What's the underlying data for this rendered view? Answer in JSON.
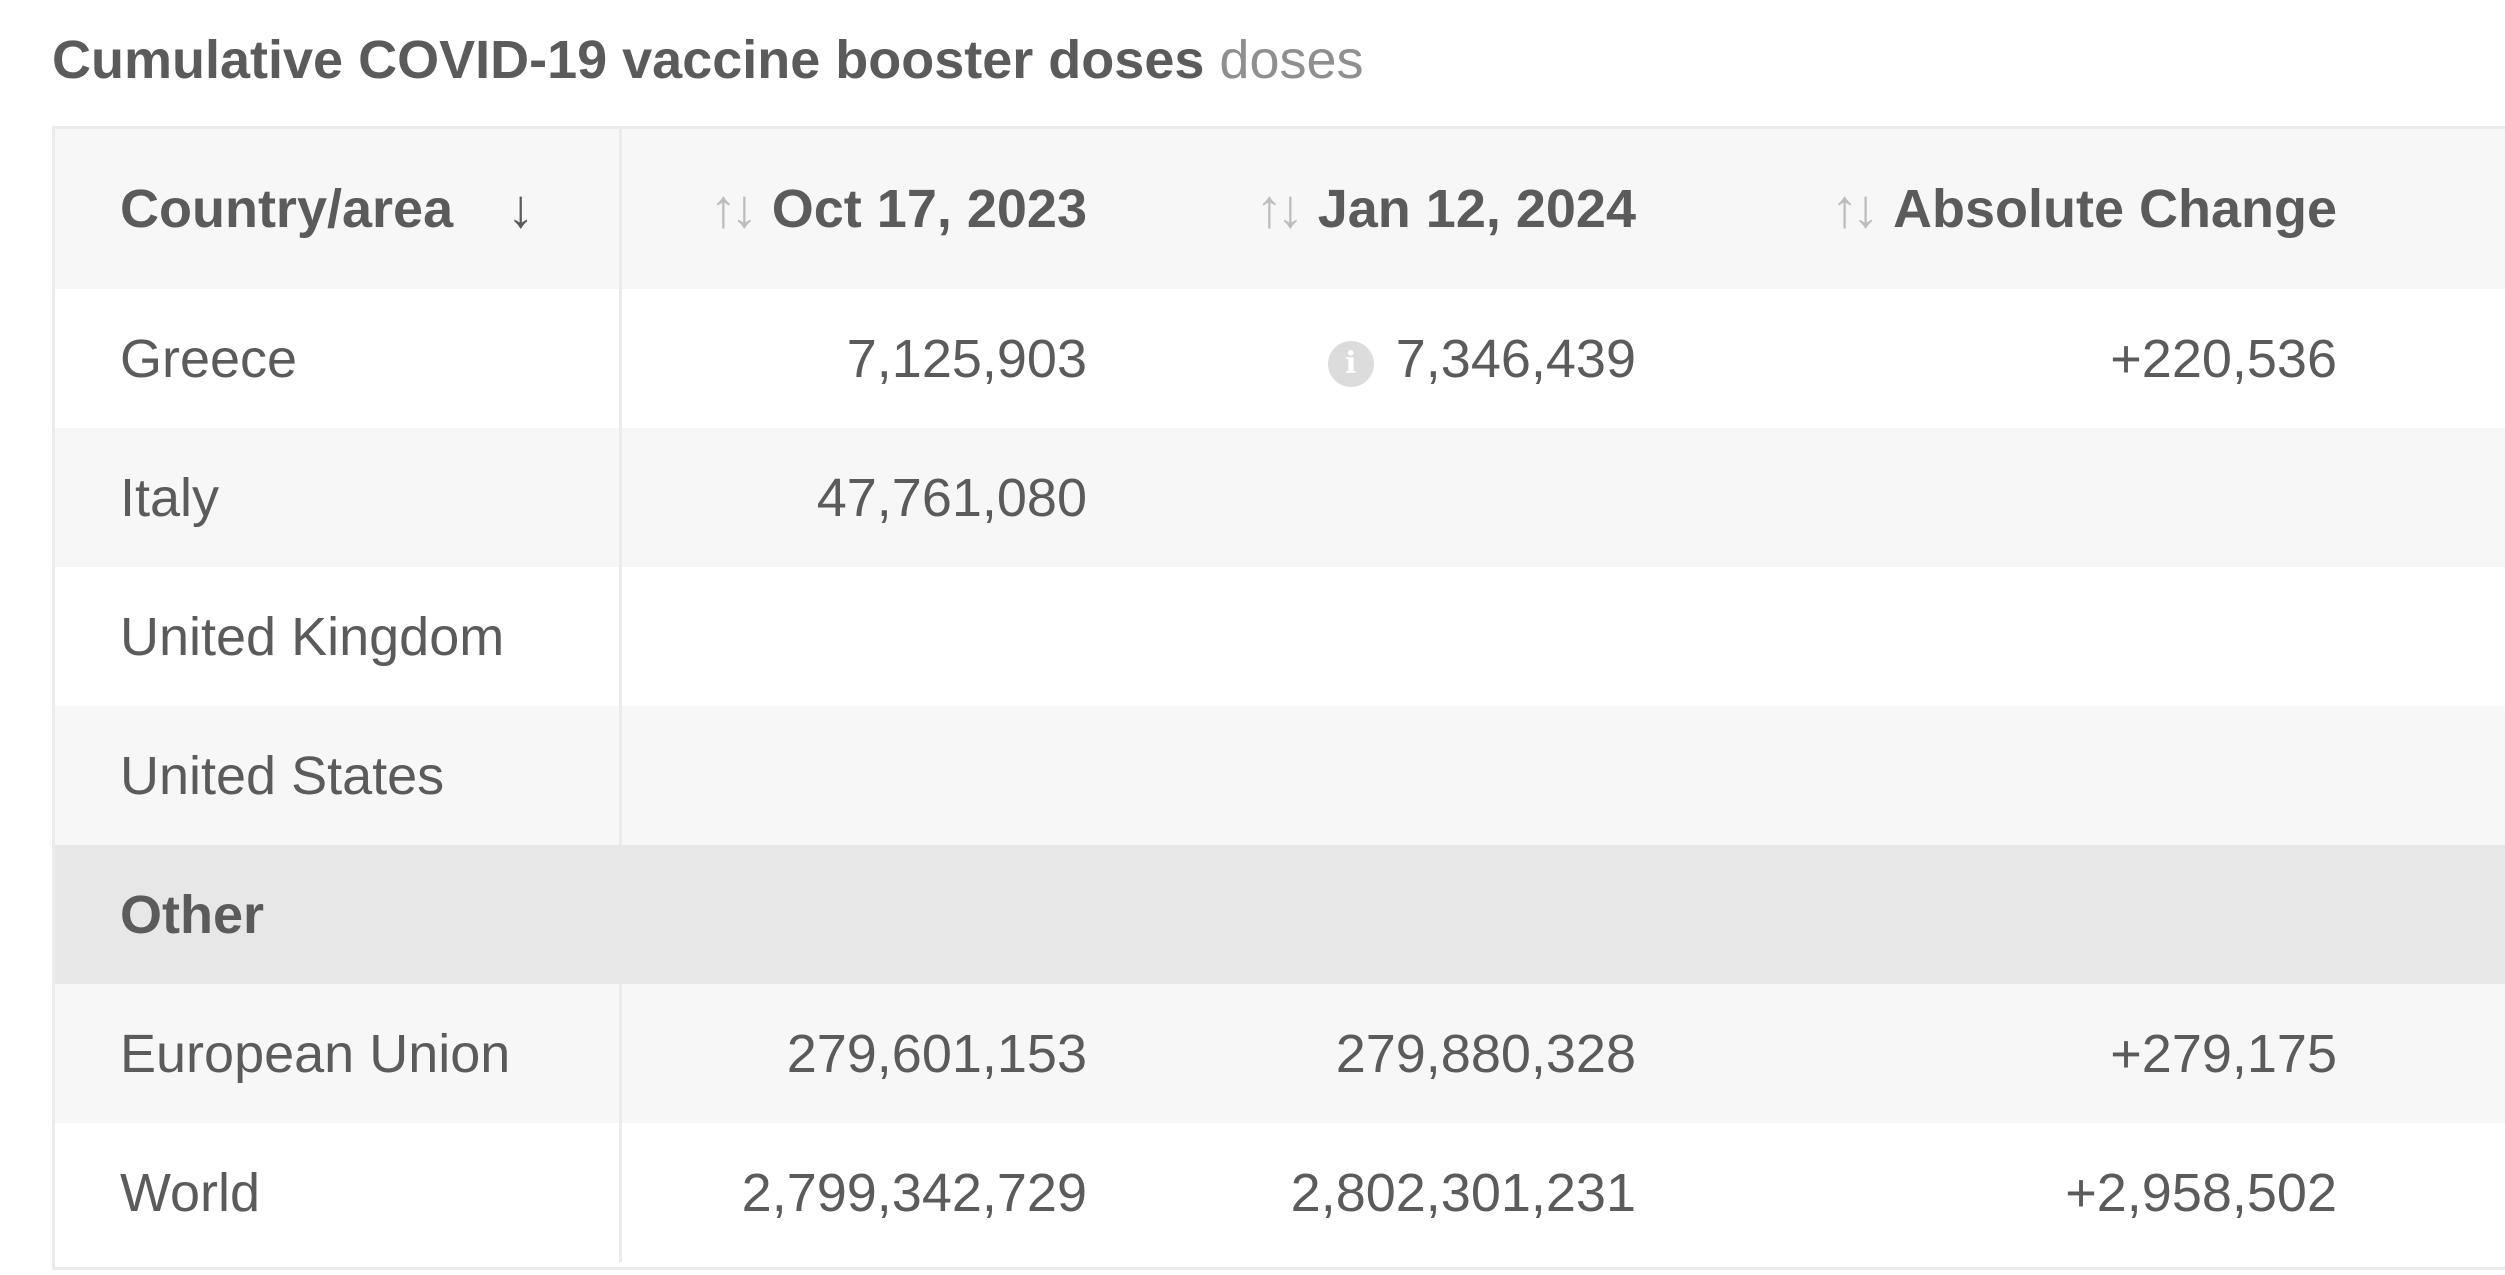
{
  "chart_data": {
    "type": "table",
    "title": "Cumulative COVID-19 vaccine booster doses",
    "unit": "doses",
    "columns": [
      "Country/area",
      "Oct 17, 2023",
      "Jan 12, 2024",
      "Absolute Change"
    ],
    "rows": [
      {
        "name": "Greece",
        "values": [
          "7,125,903",
          "7,346,439",
          "+220,536"
        ],
        "info_on": "Jan 12, 2024"
      },
      {
        "name": "Italy",
        "values": [
          "47,761,080",
          "",
          ""
        ]
      },
      {
        "name": "United Kingdom",
        "values": [
          "",
          "",
          ""
        ]
      },
      {
        "name": "United States",
        "values": [
          "",
          "",
          ""
        ]
      }
    ],
    "group_label": "Other",
    "group_rows": [
      {
        "name": "European Union",
        "values": [
          "279,601,153",
          "279,880,328",
          "+279,175"
        ]
      },
      {
        "name": "World",
        "values": [
          "2,799,342,729",
          "2,802,301,231",
          "+2,958,502"
        ]
      }
    ],
    "sort": {
      "column": "Country/area",
      "direction": "descending"
    }
  },
  "icons": {
    "sort_active": "↓",
    "sort_inactive": "↑↓",
    "info": "i"
  }
}
